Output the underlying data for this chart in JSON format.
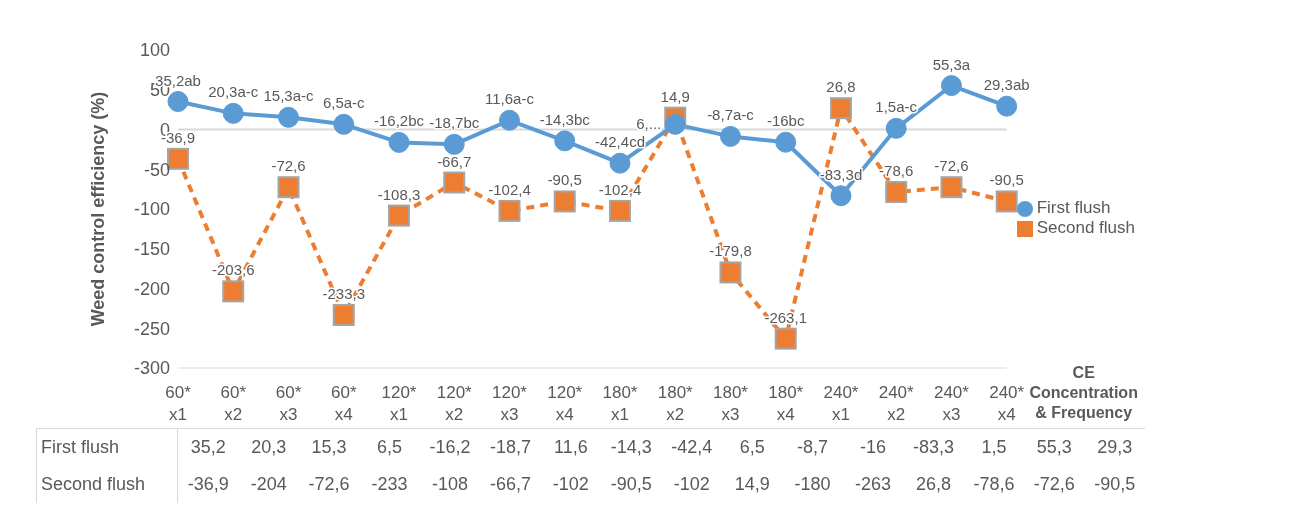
{
  "chart_data": {
    "type": "line",
    "ylabel": "Weed control efficiency (%)",
    "xlabel": "CE Concentration & Frequency",
    "categories": [
      "60* x1",
      "60* x2",
      "60* x3",
      "60* x4",
      "120* x1",
      "120* x2",
      "120* x3",
      "120* x4",
      "180* x1",
      "180* x2",
      "180* x3",
      "180* x4",
      "240* x1",
      "240* x2",
      "240* x3",
      "240* x4"
    ],
    "series": [
      {
        "name": "First flush",
        "color": "#5b9bd5",
        "marker": "circle",
        "line_style": "solid",
        "values": [
          35.2,
          20.3,
          15.3,
          6.5,
          -16.2,
          -18.7,
          11.6,
          -14.3,
          -42.4,
          6.5,
          -8.7,
          -16,
          -83.3,
          1.5,
          55.3,
          29.3
        ],
        "value_labels": [
          "35,2ab",
          "20,3a-c",
          "15,3a-c",
          "6,5a-c",
          "-16,2bc",
          "-18,7bc",
          "11,6a-c",
          "-14,3bc",
          "-42,4cd",
          "6,...",
          "-8,7a-c",
          "-16bc",
          "-83,3d",
          "1,5a-c",
          "55,3a",
          "29,3ab"
        ]
      },
      {
        "name": "Second flush",
        "color": "#ed7d31",
        "marker": "square",
        "line_style": "dashed",
        "values": [
          -36.9,
          -203.6,
          -72.6,
          -233.3,
          -108.3,
          -66.7,
          -102.4,
          -90.5,
          -102.4,
          14.9,
          -179.8,
          -263.1,
          26.8,
          -78.6,
          -72.6,
          -90.5
        ],
        "value_labels": [
          "-36,9",
          "-203,6",
          "-72,6",
          "-233,3",
          "-108,3",
          "-66,7",
          "-102,4",
          "-90,5",
          "-102,4",
          "14,9",
          "-179,8",
          "-263,1",
          "26,8",
          "-78,6",
          "-72,6",
          "-90,5"
        ]
      }
    ],
    "annotations": [
      "35,2",
      "20,3",
      "15,3",
      "6,5",
      "-16,2",
      "-18,7",
      "11,6",
      "-14,3",
      "-42,4",
      "6,5",
      "-8,7",
      "-16",
      "-83,3",
      "1,5",
      "55,3",
      "29,3",
      "-36,9",
      "-204",
      "-72,6",
      "-233",
      "-108",
      "-66,7",
      "-102",
      "-90,5",
      "-102",
      "14,9",
      "-180",
      "-263",
      "26,8",
      "-78,6",
      "-72,6",
      "-90,5"
    ],
    "ylim": [
      -300,
      100
    ],
    "yticks": [
      -300,
      -250,
      -200,
      -150,
      -100,
      -50,
      0,
      50,
      100
    ],
    "ref_lines": [
      {
        "axis": "y",
        "value": 0,
        "color": "#d9d9d9"
      }
    ],
    "grid": false,
    "legend": "right"
  }
}
